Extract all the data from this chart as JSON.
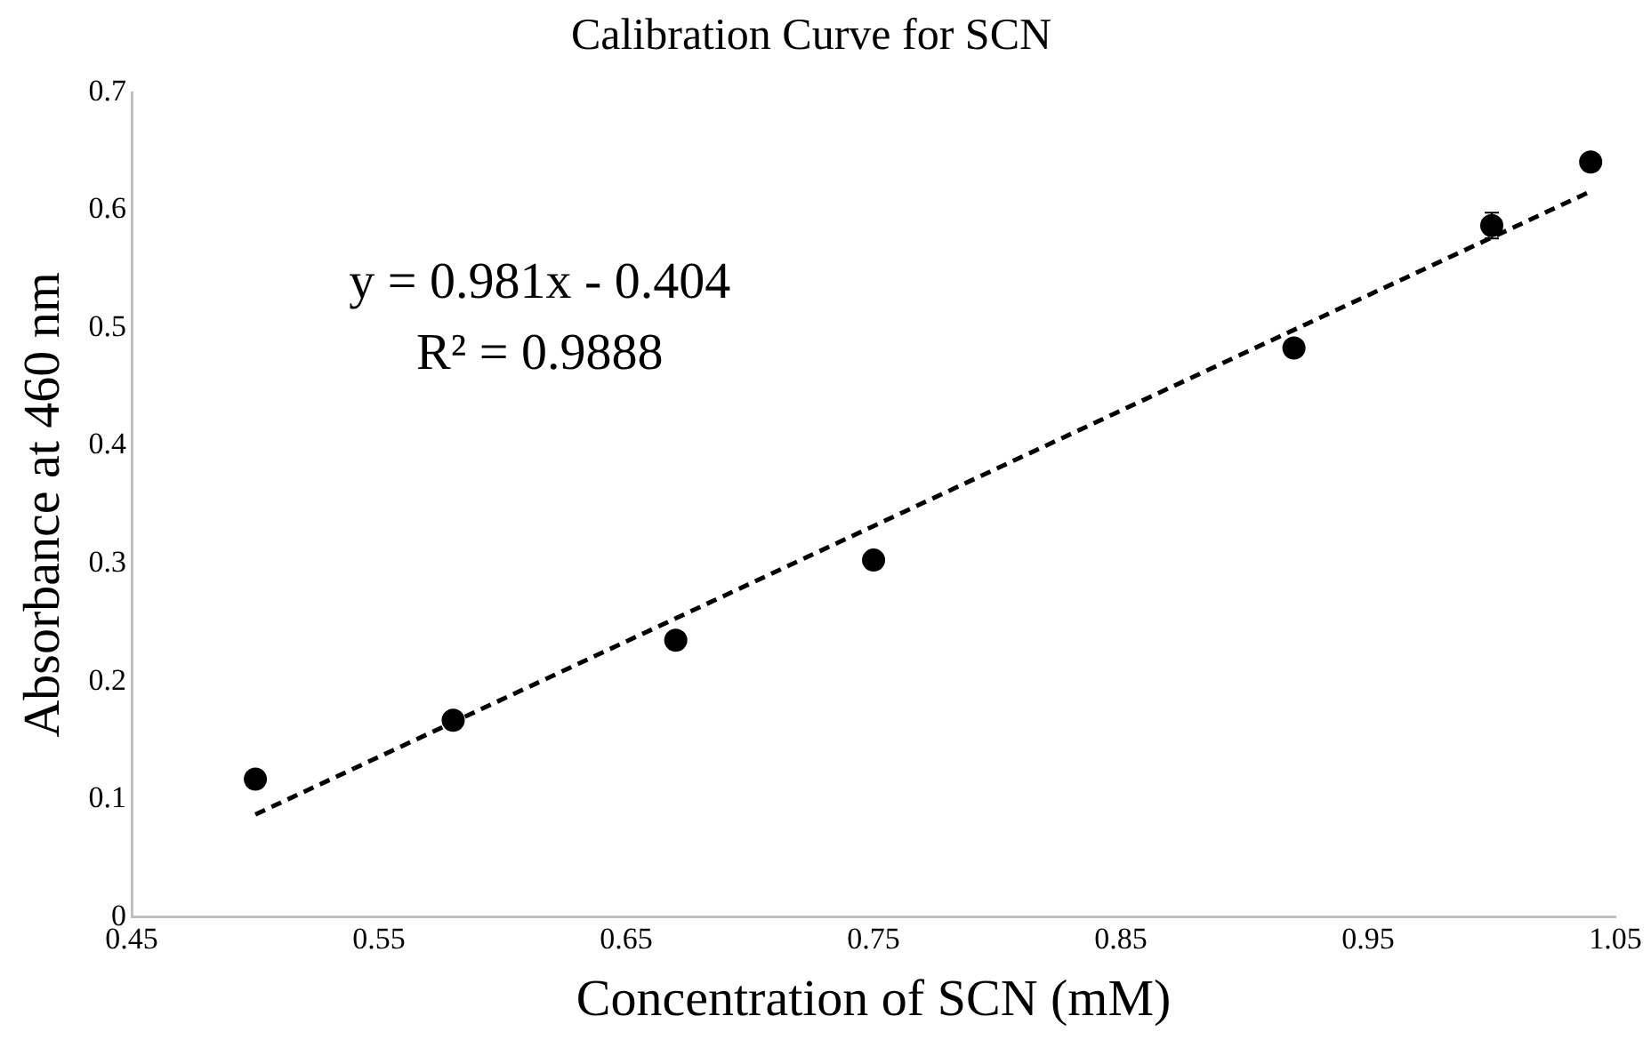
{
  "chart_data": {
    "type": "scatter",
    "title": "Calibration Curve for SCN",
    "xlabel": "Concentration of SCN (mM)",
    "ylabel": "Absorbance at 460 nm",
    "annotations": [
      "y = 0.981x - 0.404",
      "R² = 0.9888"
    ],
    "series": [
      {
        "type": "scatter",
        "color": "#000000",
        "marker": "circle",
        "x": [
          0.5,
          0.58,
          0.67,
          0.75,
          0.92,
          1.0,
          1.04
        ],
        "values": [
          0.117,
          0.167,
          0.235,
          0.303,
          0.483,
          0.587,
          0.641
        ],
        "errors": [
          null,
          null,
          null,
          null,
          null,
          0.011,
          null
        ]
      },
      {
        "type": "line",
        "color": "#000000",
        "marker": "none",
        "line_style": "dashed",
        "x": [
          0.5,
          1.04
        ],
        "values": [
          0.087,
          0.616
        ]
      }
    ],
    "xlim": [
      0.45,
      1.05
    ],
    "xticks": [
      0.45,
      0.55,
      0.65,
      0.75,
      0.85,
      0.95,
      1.05
    ],
    "ylim": [
      0,
      0.7
    ],
    "yticks": [
      0,
      0.1,
      0.2,
      0.3,
      0.4,
      0.5,
      0.6,
      0.7
    ],
    "grid": false,
    "legend": false
  }
}
